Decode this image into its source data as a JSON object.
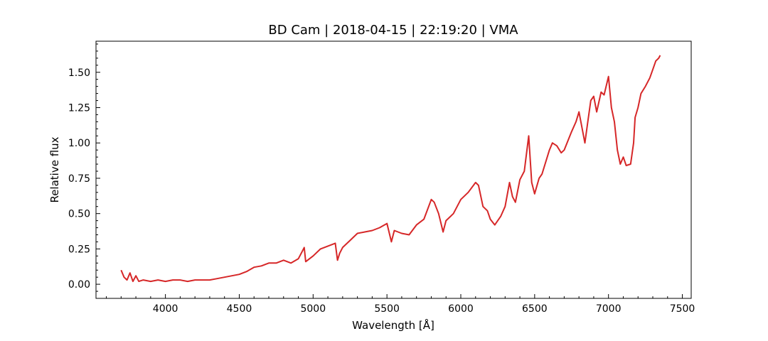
{
  "chart_data": {
    "type": "line",
    "title": "BD Cam | 2018-04-15 | 22:19:20 | VMA",
    "xlabel": "Wavelength [Å]",
    "ylabel": "Relative flux",
    "xlim": [
      3530,
      7560
    ],
    "ylim": [
      -0.1,
      1.72
    ],
    "x_ticks": [
      4000,
      4500,
      5000,
      5500,
      6000,
      6500,
      7000,
      7500
    ],
    "y_ticks": [
      0.0,
      0.25,
      0.5,
      0.75,
      1.0,
      1.25,
      1.5
    ],
    "x_tick_labels": [
      "4000",
      "4500",
      "5000",
      "5500",
      "6000",
      "6500",
      "7000",
      "7500"
    ],
    "y_tick_labels": [
      "0.00",
      "0.25",
      "0.50",
      "0.75",
      "1.00",
      "1.25",
      "1.50"
    ],
    "grid": false,
    "series": [
      {
        "color": "#d62728",
        "x": [
          3700,
          3720,
          3740,
          3760,
          3780,
          3800,
          3820,
          3850,
          3900,
          3950,
          4000,
          4050,
          4100,
          4150,
          4200,
          4250,
          4300,
          4350,
          4400,
          4450,
          4500,
          4550,
          4600,
          4650,
          4700,
          4750,
          4800,
          4850,
          4900,
          4920,
          4940,
          4950,
          5000,
          5050,
          5100,
          5150,
          5165,
          5180,
          5200,
          5250,
          5300,
          5350,
          5400,
          5450,
          5500,
          5530,
          5550,
          5600,
          5650,
          5700,
          5750,
          5800,
          5820,
          5850,
          5880,
          5900,
          5950,
          6000,
          6050,
          6100,
          6120,
          6150,
          6180,
          6200,
          6230,
          6270,
          6300,
          6330,
          6350,
          6370,
          6400,
          6430,
          6450,
          6460,
          6480,
          6500,
          6530,
          6550,
          6600,
          6620,
          6650,
          6680,
          6700,
          6750,
          6780,
          6800,
          6840,
          6860,
          6880,
          6900,
          6920,
          6950,
          6970,
          7000,
          7020,
          7040,
          7060,
          7080,
          7100,
          7120,
          7150,
          7170,
          7180,
          7200,
          7220,
          7250,
          7280,
          7300,
          7320,
          7340,
          7350
        ],
        "y": [
          0.1,
          0.05,
          0.03,
          0.08,
          0.02,
          0.06,
          0.02,
          0.03,
          0.02,
          0.03,
          0.02,
          0.03,
          0.03,
          0.02,
          0.03,
          0.03,
          0.03,
          0.04,
          0.05,
          0.06,
          0.07,
          0.09,
          0.12,
          0.13,
          0.15,
          0.15,
          0.17,
          0.15,
          0.18,
          0.22,
          0.26,
          0.16,
          0.2,
          0.25,
          0.27,
          0.29,
          0.17,
          0.22,
          0.26,
          0.31,
          0.36,
          0.37,
          0.38,
          0.4,
          0.43,
          0.3,
          0.38,
          0.36,
          0.35,
          0.42,
          0.46,
          0.6,
          0.58,
          0.5,
          0.37,
          0.45,
          0.5,
          0.6,
          0.65,
          0.72,
          0.7,
          0.55,
          0.52,
          0.46,
          0.42,
          0.48,
          0.55,
          0.72,
          0.62,
          0.58,
          0.74,
          0.8,
          0.97,
          1.05,
          0.72,
          0.64,
          0.75,
          0.78,
          0.95,
          1.0,
          0.98,
          0.93,
          0.95,
          1.08,
          1.15,
          1.22,
          1.0,
          1.15,
          1.3,
          1.33,
          1.22,
          1.36,
          1.34,
          1.47,
          1.25,
          1.15,
          0.95,
          0.85,
          0.9,
          0.84,
          0.85,
          1.0,
          1.18,
          1.25,
          1.35,
          1.4,
          1.46,
          1.52,
          1.58,
          1.6,
          1.62
        ]
      }
    ]
  }
}
